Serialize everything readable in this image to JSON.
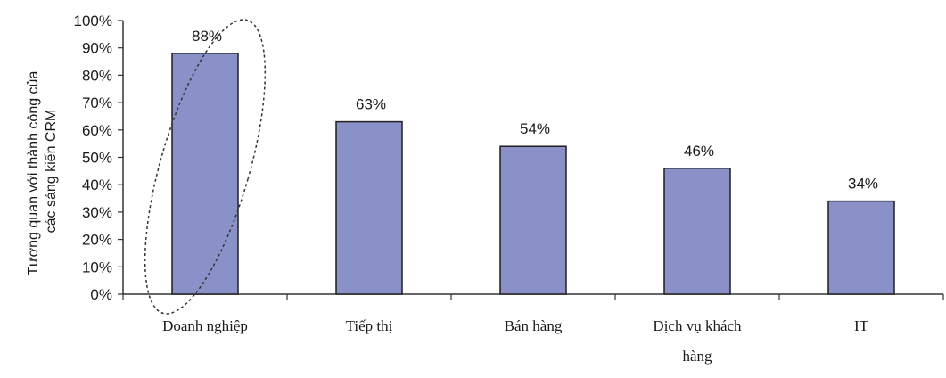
{
  "chart_data": {
    "type": "bar",
    "title": "",
    "xlabel": "",
    "ylabel_lines": [
      "Tương quan với thành công của",
      "các sáng kiến CRM"
    ],
    "categories": [
      [
        "Doanh nghiệp"
      ],
      [
        "Tiếp thị"
      ],
      [
        "Bán hàng"
      ],
      [
        "Dịch vụ khách",
        "hàng"
      ],
      [
        "IT"
      ]
    ],
    "values": [
      88,
      63,
      54,
      46,
      34
    ],
    "value_labels": [
      "88%",
      "63%",
      "54%",
      "46%",
      "34%"
    ],
    "y_ticks": [
      "0%",
      "10%",
      "20%",
      "30%",
      "40%",
      "50%",
      "60%",
      "70%",
      "80%",
      "90%",
      "100%"
    ],
    "ylim": [
      0,
      100
    ],
    "grid": false,
    "legend": "none",
    "highlighted_category": "Doanh nghiệp",
    "highlight_style": "dashed-ellipse",
    "colors": {
      "bar_fill": "#8a91c8",
      "bar_stroke": "#1f1f1f",
      "axis": "#333333",
      "highlight": "#333333"
    }
  }
}
